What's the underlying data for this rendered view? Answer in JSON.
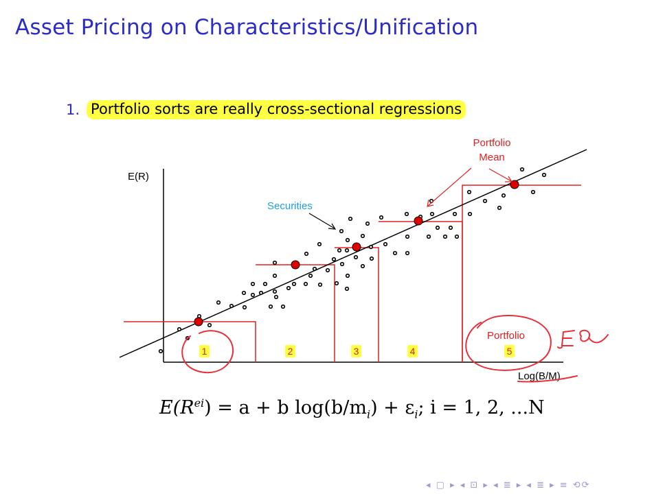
{
  "slide": {
    "title": "Asset Pricing on Characteristics/Unification",
    "item_number": "1.",
    "item_text": "Portfolio sorts are really cross-sectional regressions"
  },
  "figure": {
    "y_axis_label": "E(R)",
    "x_axis_label": "Log(B/M)",
    "securities_label": "Securities",
    "portfolio_mean_label_line1": "Portfolio",
    "portfolio_mean_label_line2": "Mean",
    "portfolio_label": "Portfolio",
    "portfolio_numbers": [
      "1",
      "2",
      "3",
      "4",
      "5"
    ],
    "annotation_handwriting": "E.g."
  },
  "formula": {
    "lhs": "E(R",
    "sup": "ei",
    "rhs": ") = a + b log(b/m",
    "sub": "i",
    "tail": ") + ε",
    "sub2": "i",
    "index": ";  i = 1, 2, ...N"
  },
  "colors": {
    "title": "#2b2bc8",
    "highlight": "#ffff44",
    "red": "#e02020",
    "securities_label": "#1aa0e0"
  },
  "nav": {
    "symbols": "◂ ▢ ▸ ◂ ⊡ ▸ ◂ ≣ ▸ ◂ ≣ ▸   ≡   ⟲⟳"
  }
}
